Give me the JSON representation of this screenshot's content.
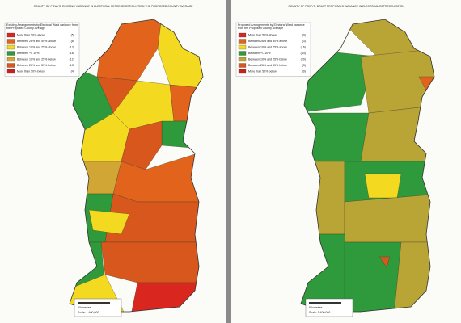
{
  "left_map": {
    "title": "COUNTY OF POWYS: EXISTING VARIANCE IN ELECTORAL REPRESENTATION FROM THE PROPOSED COUNTY AVERAGE",
    "legend": {
      "title": "Existing Arrangements by Electoral Ward variance from the Proposed County Average",
      "items": [
        {
          "label": "More than 50% above",
          "count": "(5)",
          "color": "#d9261e"
        },
        {
          "label": "Between 26% and 50% above",
          "count": "(8)",
          "color": "#e2641c"
        },
        {
          "label": "Between 10% and 25% above",
          "count": "(13)",
          "color": "#f3d920"
        },
        {
          "label": "Between +/- 10%",
          "count": "(18)",
          "color": "#2f9a3b"
        },
        {
          "label": "Between 10% and 25% below",
          "count": "(12)",
          "color": "#d2a634"
        },
        {
          "label": "Between 26% and 50% below",
          "count": "(13)",
          "color": "#d8571c"
        },
        {
          "label": "More than 50% below",
          "count": "(4)",
          "color": "#c8201f"
        }
      ]
    },
    "scale": {
      "unit": "Kilometres",
      "ratio": "Scale: 1:400,000"
    }
  },
  "right_map": {
    "title": "COUNTY OF POWYS: DRAFT PROPOSALS VARIANCE IN ELECTORAL REPRESENTATION",
    "legend": {
      "title": "Proposed Arrangements by Electoral Ward variance from the Proposed County Average",
      "items": [
        {
          "label": "More than 50% above",
          "count": "(0)",
          "color": "#d9261e"
        },
        {
          "label": "Between 26% and 50% above",
          "count": "(3)",
          "color": "#e2641c"
        },
        {
          "label": "Between 10% and 25% above",
          "count": "(16)",
          "color": "#f3d920"
        },
        {
          "label": "Between +/- 10%",
          "count": "(34)",
          "color": "#2f9a3b"
        },
        {
          "label": "Between 10% and 25% below",
          "count": "(20)",
          "color": "#b9a436"
        },
        {
          "label": "Between 26% and 50% below",
          "count": "(3)",
          "color": "#d8571c"
        },
        {
          "label": "More than 50% below",
          "count": "(0)",
          "color": "#c8201f"
        }
      ]
    },
    "scale": {
      "unit": "Kilometres",
      "ratio": "Scale: 1:400,000"
    }
  }
}
